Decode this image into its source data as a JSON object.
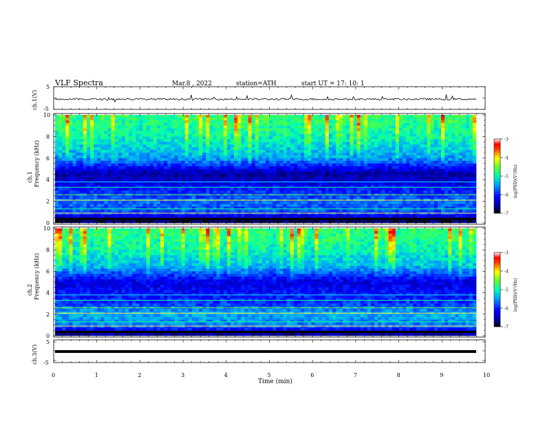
{
  "header": {
    "title": "VLF  Spectra",
    "date": "Mar.8  , 2022",
    "station": "station=ATH",
    "start_ut": "start  UT  =    17: 10: 1"
  },
  "panels": {
    "ch1_wave": {
      "ylabel": "ch.1(V)"
    },
    "ch1_spec": {
      "ylabel_ch": "ch.1",
      "ylabel_freq": "Frequency  (kHz)"
    },
    "ch2_spec": {
      "ylabel_ch": "ch.2",
      "ylabel_freq": "Frequency  (kHz)"
    },
    "ch3_wave": {
      "ylabel": "ch.3(V)"
    }
  },
  "colorbar": {
    "label": "log(PSD)(V²/Hz)",
    "ticks": [
      "-3",
      "-4",
      "-5",
      "-6",
      "-7"
    ]
  },
  "xaxis_label": "Time  (min)",
  "colors": {
    "spec_low": "#000080",
    "spec_mid": "#00ff80",
    "spec_high": "#ff0000",
    "trace": "#000000"
  },
  "chart_data": [
    {
      "type": "line",
      "title": "",
      "ylabel": "ch.1(V)",
      "xlabel": "",
      "xlim": [
        0,
        10
      ],
      "ylim": [
        -5,
        5
      ],
      "ytick_labels": [
        "5",
        "-5"
      ],
      "data_extent_min": [
        0,
        9.8
      ],
      "series": [
        {
          "values_desc": "noisy trace near -0.5 V with small spikes",
          "mean": -0.5
        }
      ]
    },
    {
      "type": "heatmap",
      "ylabel": "Frequency  (kHz)",
      "xlim": [
        0,
        10
      ],
      "ylim": [
        0,
        10
      ],
      "ytick_labels": [
        "0",
        "2",
        "4",
        "6",
        "8",
        "10"
      ],
      "colorbar_range": [
        -7,
        -3
      ],
      "colorbar_ticks": [
        "-3",
        "-4",
        "-5",
        "-6",
        "-7"
      ],
      "colorbar_label": "log(PSD)(V²/Hz)",
      "log_psd_profile": [
        {
          "freq_khz": 0.2,
          "log_psd": -6.8
        },
        {
          "freq_khz": 1.0,
          "log_psd": -5.8
        },
        {
          "freq_khz": 2.0,
          "log_psd": -5.7
        },
        {
          "freq_khz": 3.0,
          "log_psd": -6.0
        },
        {
          "freq_khz": 4.5,
          "log_psd": -6.6
        },
        {
          "freq_khz": 6.0,
          "log_psd": -5.5
        },
        {
          "freq_khz": 8.0,
          "log_psd": -5.1
        },
        {
          "freq_khz": 10.0,
          "log_psd": -4.9
        }
      ]
    },
    {
      "type": "heatmap",
      "ylabel": "Frequency  (kHz)",
      "xlim": [
        0,
        10
      ],
      "ylim": [
        0,
        10
      ],
      "ytick_labels": [
        "0",
        "2",
        "4",
        "6",
        "8",
        "10"
      ],
      "colorbar_range": [
        -7,
        -3
      ],
      "colorbar_ticks": [
        "-3",
        "-4",
        "-5",
        "-6",
        "-7"
      ],
      "colorbar_label": "log(PSD)(V²/Hz)",
      "log_psd_profile": [
        {
          "freq_khz": 0.2,
          "log_psd": -6.6
        },
        {
          "freq_khz": 1.0,
          "log_psd": -5.6
        },
        {
          "freq_khz": 2.0,
          "log_psd": -5.4
        },
        {
          "freq_khz": 3.0,
          "log_psd": -5.9
        },
        {
          "freq_khz": 5.0,
          "log_psd": -6.3
        },
        {
          "freq_khz": 6.5,
          "log_psd": -5.4
        },
        {
          "freq_khz": 8.0,
          "log_psd": -5.1
        },
        {
          "freq_khz": 10.0,
          "log_psd": -4.9
        }
      ]
    },
    {
      "type": "line",
      "ylabel": "ch.3(V)",
      "xlabel": "Time  (min)",
      "xlim": [
        0,
        10
      ],
      "ylim": [
        -5,
        5
      ],
      "ytick_labels": [
        "5",
        "-5"
      ],
      "series": [
        {
          "values_desc": "flat thick trace",
          "mean": -1.5
        }
      ],
      "xtick_labels": [
        "0",
        "1",
        "2",
        "3",
        "4",
        "5",
        "6",
        "7",
        "8",
        "9",
        "10"
      ]
    }
  ]
}
